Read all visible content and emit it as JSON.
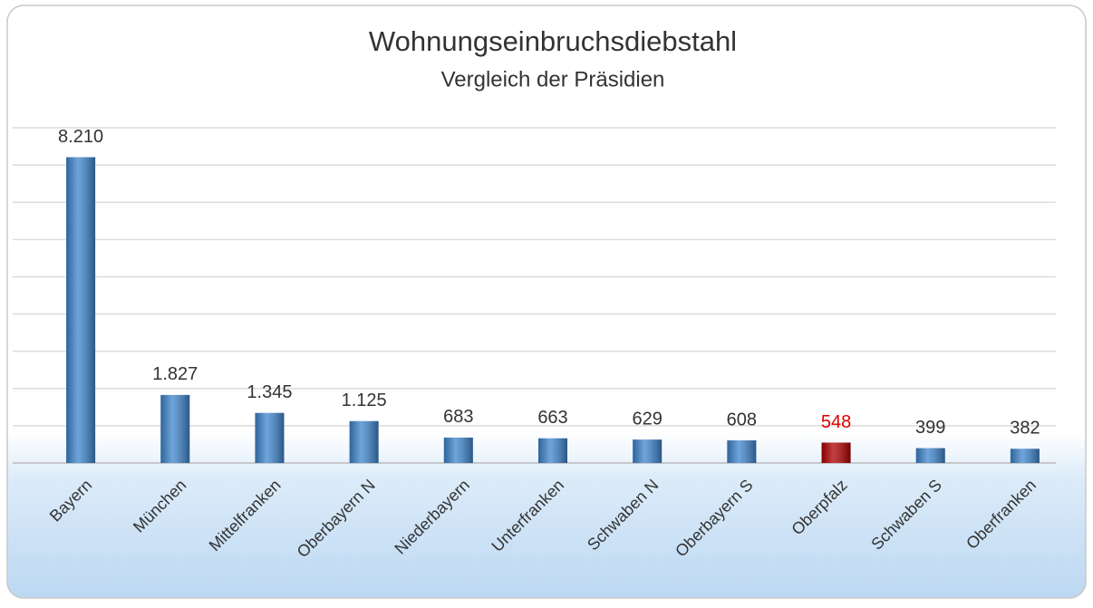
{
  "chart_data": {
    "type": "bar",
    "title": "Wohnungseinbruchsdiebstahl",
    "subtitle": "Vergleich der Präsidien",
    "categories": [
      "Bayern",
      "München",
      "Mittelfranken",
      "Oberbayern N",
      "Niederbayern",
      "Unterfranken",
      "Schwaben N",
      "Oberbayern S",
      "Oberpfalz",
      "Schwaben S",
      "Oberfranken"
    ],
    "values": [
      8210,
      1827,
      1345,
      1125,
      683,
      663,
      629,
      608,
      548,
      399,
      382
    ],
    "value_labels": [
      "8.210",
      "1.827",
      "1.345",
      "1.125",
      "683",
      "663",
      "629",
      "608",
      "548",
      "399",
      "382"
    ],
    "colors": [
      "#3f86cf",
      "#3f86cf",
      "#3f86cf",
      "#3f86cf",
      "#3f86cf",
      "#3f86cf",
      "#3f86cf",
      "#3f86cf",
      "#b00000",
      "#3f86cf",
      "#3f86cf"
    ],
    "value_label_colors": [
      "#333333",
      "#333333",
      "#333333",
      "#333333",
      "#333333",
      "#333333",
      "#333333",
      "#333333",
      "#e00000",
      "#333333",
      "#333333"
    ],
    "ylim": [
      0,
      9000
    ],
    "yticks": [
      0,
      1000,
      2000,
      3000,
      4000,
      5000,
      6000,
      7000,
      8000,
      9000
    ],
    "grid": true
  }
}
